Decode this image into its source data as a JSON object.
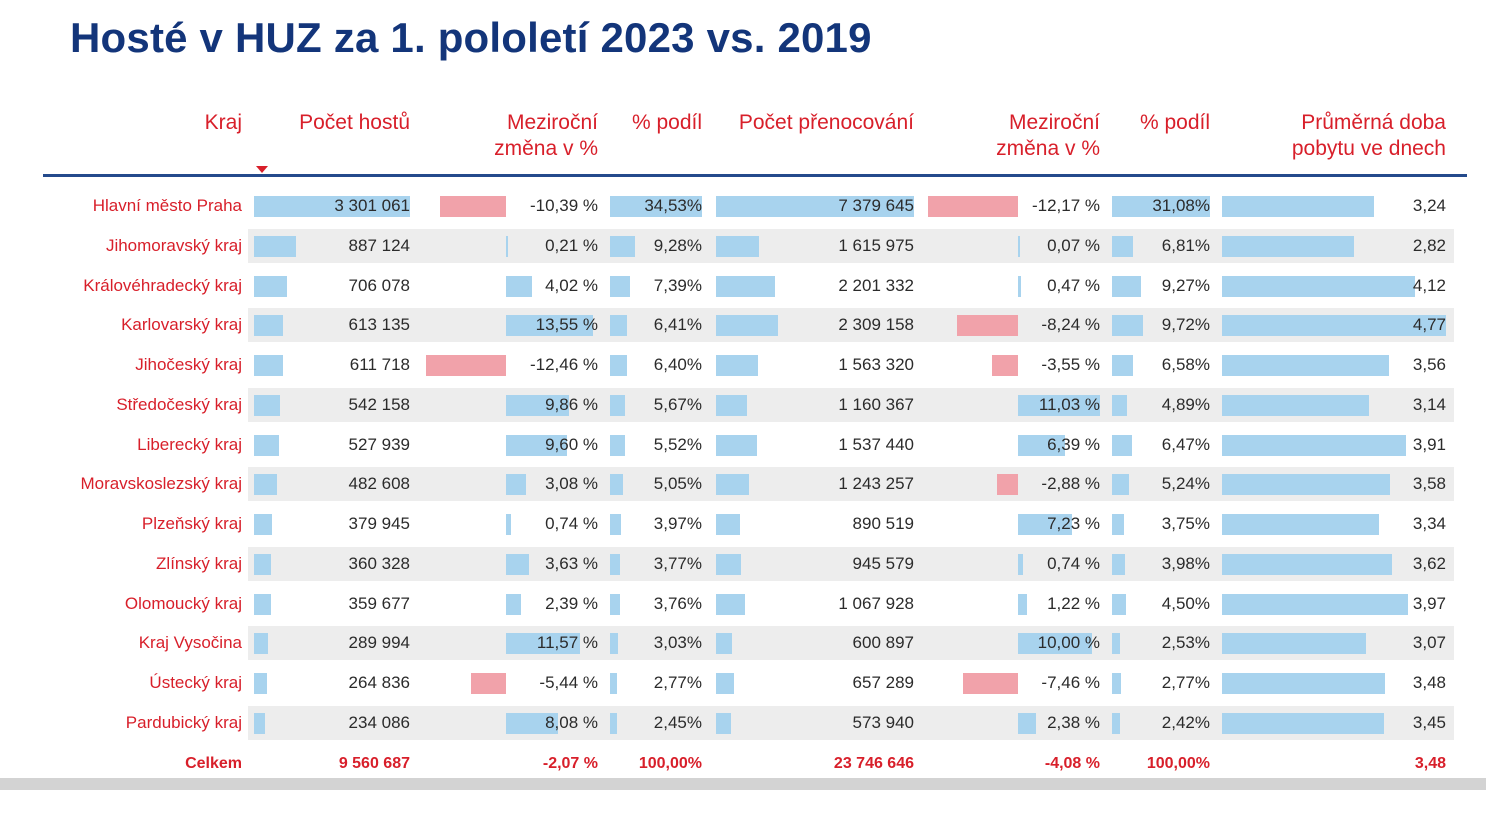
{
  "title": "Hosté v HUZ za 1. pololetí 2023 vs. 2019",
  "colors": {
    "title": "#13357a",
    "accent": "#d81f2a",
    "rule": "#244a8c",
    "bar_blue": "#a8d3ee",
    "bar_red": "#f1a2aa",
    "band": "#ededed"
  },
  "headers": {
    "kraj": "Kraj",
    "guests": "Počet hostů",
    "guests_change": "Meziroční\nzměna v %",
    "guests_share": "% podíl",
    "nights": "Počet přenocování",
    "nights_change": "Meziroční\nzměna v %",
    "nights_share": "% podíl",
    "avg_stay": "Průměrná doba\npobytu ve dnech"
  },
  "rows": [
    {
      "kraj": "Hlavní město Praha",
      "guests": "3 301 061",
      "guests_change": "-10,39 %",
      "guests_share": "34,53%",
      "nights": "7 379 645",
      "nights_change": "-12,17 %",
      "nights_share": "31,08%",
      "avg_stay": "3,24"
    },
    {
      "kraj": "Jihomoravský kraj",
      "guests": "887 124",
      "guests_change": "0,21 %",
      "guests_share": "9,28%",
      "nights": "1 615 975",
      "nights_change": "0,07 %",
      "nights_share": "6,81%",
      "avg_stay": "2,82"
    },
    {
      "kraj": "Královéhradecký kraj",
      "guests": "706 078",
      "guests_change": "4,02 %",
      "guests_share": "7,39%",
      "nights": "2 201 332",
      "nights_change": "0,47 %",
      "nights_share": "9,27%",
      "avg_stay": "4,12"
    },
    {
      "kraj": "Karlovarský kraj",
      "guests": "613 135",
      "guests_change": "13,55 %",
      "guests_share": "6,41%",
      "nights": "2 309 158",
      "nights_change": "-8,24 %",
      "nights_share": "9,72%",
      "avg_stay": "4,77"
    },
    {
      "kraj": "Jihočeský kraj",
      "guests": "611 718",
      "guests_change": "-12,46 %",
      "guests_share": "6,40%",
      "nights": "1 563 320",
      "nights_change": "-3,55 %",
      "nights_share": "6,58%",
      "avg_stay": "3,56"
    },
    {
      "kraj": "Středočeský kraj",
      "guests": "542 158",
      "guests_change": "9,86 %",
      "guests_share": "5,67%",
      "nights": "1 160 367",
      "nights_change": "11,03 %",
      "nights_share": "4,89%",
      "avg_stay": "3,14"
    },
    {
      "kraj": "Liberecký kraj",
      "guests": "527 939",
      "guests_change": "9,60 %",
      "guests_share": "5,52%",
      "nights": "1 537 440",
      "nights_change": "6,39 %",
      "nights_share": "6,47%",
      "avg_stay": "3,91"
    },
    {
      "kraj": "Moravskoslezský kraj",
      "guests": "482 608",
      "guests_change": "3,08 %",
      "guests_share": "5,05%",
      "nights": "1 243 257",
      "nights_change": "-2,88 %",
      "nights_share": "5,24%",
      "avg_stay": "3,58"
    },
    {
      "kraj": "Plzeňský kraj",
      "guests": "379 945",
      "guests_change": "0,74 %",
      "guests_share": "3,97%",
      "nights": "890 519",
      "nights_change": "7,23 %",
      "nights_share": "3,75%",
      "avg_stay": "3,34"
    },
    {
      "kraj": "Zlínský kraj",
      "guests": "360 328",
      "guests_change": "3,63 %",
      "guests_share": "3,77%",
      "nights": "945 579",
      "nights_change": "0,74 %",
      "nights_share": "3,98%",
      "avg_stay": "3,62"
    },
    {
      "kraj": "Olomoucký kraj",
      "guests": "359 677",
      "guests_change": "2,39 %",
      "guests_share": "3,76%",
      "nights": "1 067 928",
      "nights_change": "1,22 %",
      "nights_share": "4,50%",
      "avg_stay": "3,97"
    },
    {
      "kraj": "Kraj Vysočina",
      "guests": "289 994",
      "guests_change": "11,57 %",
      "guests_share": "3,03%",
      "nights": "600 897",
      "nights_change": "10,00 %",
      "nights_share": "2,53%",
      "avg_stay": "3,07"
    },
    {
      "kraj": "Ústecký kraj",
      "guests": "264 836",
      "guests_change": "-5,44 %",
      "guests_share": "2,77%",
      "nights": "657 289",
      "nights_change": "-7,46 %",
      "nights_share": "2,77%",
      "avg_stay": "3,48"
    },
    {
      "kraj": "Pardubický kraj",
      "guests": "234 086",
      "guests_change": "8,08 %",
      "guests_share": "2,45%",
      "nights": "573 940",
      "nights_change": "2,38 %",
      "nights_share": "2,42%",
      "avg_stay": "3,45"
    }
  ],
  "total": {
    "kraj": "Celkem",
    "guests": "9 560 687",
    "guests_change": "-2,07 %",
    "guests_share": "100,00%",
    "nights": "23 746 646",
    "nights_change": "-4,08 %",
    "nights_share": "100,00%",
    "avg_stay": "3,48"
  }
}
